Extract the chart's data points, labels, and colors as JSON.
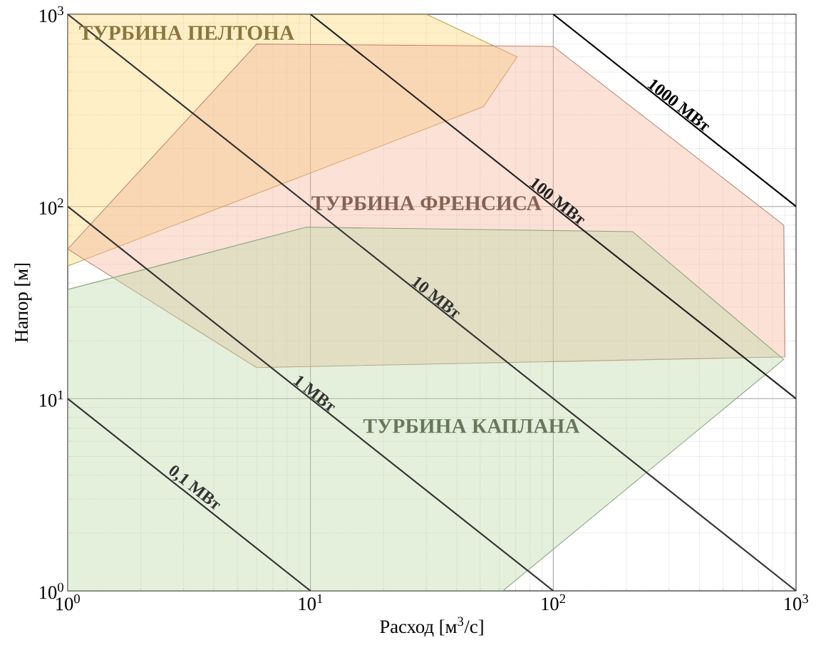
{
  "chart_data": {
    "type": "area",
    "xlabel": "Расход [м$^{3}$/с]",
    "ylabel": "Напор [м]",
    "log": "xy",
    "xlim": [
      1,
      1000
    ],
    "ylim": [
      1,
      1000
    ],
    "xticks": [
      {
        "value": 1,
        "label": "10$^{0}$"
      },
      {
        "value": 10,
        "label": "10$^{1}$"
      },
      {
        "value": 100,
        "label": "10$^{2}$"
      },
      {
        "value": 1000,
        "label": "10$^{3}$"
      }
    ],
    "yticks": [
      {
        "value": 1,
        "label": "10$^{0}$"
      },
      {
        "value": 10,
        "label": "10$^{1}$"
      },
      {
        "value": 100,
        "label": "10$^{2}$"
      },
      {
        "value": 1000,
        "label": "10$^{3}$"
      }
    ],
    "grid": true,
    "series": [
      {
        "name": "ТУРБИНА ПЕЛТОНА",
        "color": "#fcd670",
        "x": [
          1,
          30,
          71,
          51.5,
          1
        ],
        "values": [
          1000,
          1000,
          600,
          330,
          49
        ]
      },
      {
        "name": "ТУРБИНА ФРЕНСИСА",
        "color": "#f4b398",
        "x": [
          1,
          6,
          100,
          890,
          900,
          6
        ],
        "values": [
          60,
          700,
          680,
          80,
          16.5,
          14.5
        ]
      },
      {
        "name": "ТУРБИНА КАПЛАНА",
        "color": "#bcd9a8",
        "x": [
          1,
          9.6,
          212,
          890,
          62,
          1
        ],
        "values": [
          37,
          78,
          74,
          16,
          1,
          1
        ]
      },
      {
        "name": "0,1 МВт",
        "type": "line",
        "color": "#333333",
        "x": [
          1,
          10
        ],
        "values": [
          10,
          1
        ]
      },
      {
        "name": "1 МВт",
        "type": "line",
        "color": "#333333",
        "x": [
          1,
          100
        ],
        "values": [
          100,
          1
        ]
      },
      {
        "name": "10 МВт",
        "type": "line",
        "color": "#333333",
        "x": [
          1,
          1000
        ],
        "values": [
          1000,
          1
        ]
      },
      {
        "name": "100 МВт",
        "type": "line",
        "color": "#222222",
        "x": [
          10,
          1000
        ],
        "values": [
          1000,
          10
        ]
      },
      {
        "name": "1000 МВт",
        "type": "line",
        "color": "#000000",
        "x": [
          100,
          1000
        ],
        "values": [
          1000,
          100
        ]
      }
    ]
  }
}
